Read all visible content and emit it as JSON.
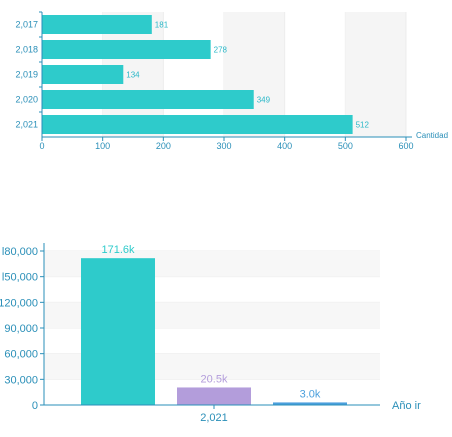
{
  "chart_data": [
    {
      "type": "bar",
      "orientation": "horizontal",
      "categories": [
        "2,017",
        "2,018",
        "2,019",
        "2,020",
        "2,021"
      ],
      "values": [
        181,
        278,
        134,
        349,
        512
      ],
      "data_labels": [
        "181",
        "278",
        "134",
        "349",
        "512"
      ],
      "xlabel": "Cantidad",
      "xlim": [
        0,
        600
      ],
      "xticks": [
        "0",
        "100",
        "200",
        "300",
        "400",
        "500",
        "600"
      ],
      "bar_color": "#2ecbcb",
      "grid": "alternating vertical bands"
    },
    {
      "type": "bar",
      "categories": [
        "2,021"
      ],
      "series": [
        {
          "values": [
            171600
          ],
          "label": "171.6k",
          "color": "#2ecbcb"
        },
        {
          "values": [
            20500
          ],
          "label": "20.5k",
          "color": "#b39ddb"
        },
        {
          "values": [
            3000
          ],
          "label": "3.0k",
          "color": "#4a9fdc"
        }
      ],
      "xlabel": "Año ir",
      "ylim": [
        0,
        180000
      ],
      "yticks": [
        "0",
        "30,000",
        "60,000",
        "90,000",
        "120,000",
        "150,000",
        "180,000"
      ],
      "ytick_display": [
        "0",
        "30,000",
        "60,000",
        "90,000",
        "120,000",
        "l50,000",
        "l80,000"
      ],
      "grid": "horizontal"
    }
  ]
}
